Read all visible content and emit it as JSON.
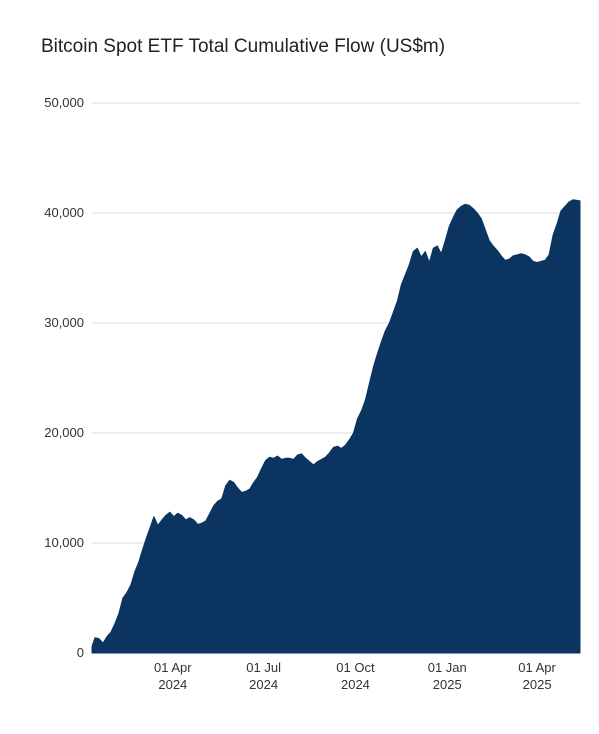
{
  "chart_data": {
    "type": "area",
    "title": "Bitcoin Spot ETF Total Cumulative Flow (US$m)",
    "xlabel": "",
    "ylabel": "",
    "ylim": [
      0,
      50000
    ],
    "xlim": [
      "2024-01-11",
      "2025-05-14"
    ],
    "grid": true,
    "legend": "none",
    "colors": {
      "area": "#0b3560",
      "grid": "#d9d9d9",
      "text": "#333333"
    },
    "y_ticks": [
      {
        "value": 0,
        "label": "0"
      },
      {
        "value": 10000,
        "label": "10,000"
      },
      {
        "value": 20000,
        "label": "20,000"
      },
      {
        "value": 30000,
        "label": "30,000"
      },
      {
        "value": 40000,
        "label": "40,000"
      },
      {
        "value": 50000,
        "label": "50,000"
      }
    ],
    "x_ticks": [
      {
        "date": "2024-04-01",
        "line1": "01 Apr",
        "line2": "2024"
      },
      {
        "date": "2024-07-01",
        "line1": "01 Jul",
        "line2": "2024"
      },
      {
        "date": "2024-10-01",
        "line1": "01 Oct",
        "line2": "2024"
      },
      {
        "date": "2025-01-01",
        "line1": "01 Jan",
        "line2": "2025"
      },
      {
        "date": "2025-04-01",
        "line1": "01 Apr",
        "line2": "2025"
      }
    ],
    "series": [
      {
        "points": [
          [
            "2024-01-11",
            600
          ],
          [
            "2024-01-14",
            1400
          ],
          [
            "2024-01-18",
            1300
          ],
          [
            "2024-01-22",
            900
          ],
          [
            "2024-01-26",
            1500
          ],
          [
            "2024-01-30",
            1900
          ],
          [
            "2024-02-03",
            2700
          ],
          [
            "2024-02-07",
            3600
          ],
          [
            "2024-02-11",
            5000
          ],
          [
            "2024-02-15",
            5500
          ],
          [
            "2024-02-19",
            6200
          ],
          [
            "2024-02-23",
            7400
          ],
          [
            "2024-02-27",
            8300
          ],
          [
            "2024-03-02",
            9500
          ],
          [
            "2024-03-06",
            10600
          ],
          [
            "2024-03-10",
            11600
          ],
          [
            "2024-03-13",
            12400
          ],
          [
            "2024-03-17",
            11600
          ],
          [
            "2024-03-21",
            12100
          ],
          [
            "2024-03-25",
            12500
          ],
          [
            "2024-03-29",
            12800
          ],
          [
            "2024-04-02",
            12400
          ],
          [
            "2024-04-06",
            12700
          ],
          [
            "2024-04-10",
            12500
          ],
          [
            "2024-04-14",
            12100
          ],
          [
            "2024-04-18",
            12300
          ],
          [
            "2024-04-22",
            12100
          ],
          [
            "2024-04-26",
            11700
          ],
          [
            "2024-04-30",
            11800
          ],
          [
            "2024-05-04",
            12000
          ],
          [
            "2024-05-08",
            12700
          ],
          [
            "2024-05-12",
            13400
          ],
          [
            "2024-05-16",
            13800
          ],
          [
            "2024-05-20",
            14000
          ],
          [
            "2024-05-24",
            15200
          ],
          [
            "2024-05-28",
            15700
          ],
          [
            "2024-06-01",
            15500
          ],
          [
            "2024-06-05",
            15000
          ],
          [
            "2024-06-09",
            14600
          ],
          [
            "2024-06-13",
            14700
          ],
          [
            "2024-06-17",
            14900
          ],
          [
            "2024-06-21",
            15500
          ],
          [
            "2024-06-25",
            16000
          ],
          [
            "2024-06-29",
            16800
          ],
          [
            "2024-07-03",
            17500
          ],
          [
            "2024-07-07",
            17800
          ],
          [
            "2024-07-11",
            17700
          ],
          [
            "2024-07-15",
            17900
          ],
          [
            "2024-07-19",
            17600
          ],
          [
            "2024-07-23",
            17700
          ],
          [
            "2024-07-27",
            17700
          ],
          [
            "2024-07-31",
            17600
          ],
          [
            "2024-08-04",
            18000
          ],
          [
            "2024-08-08",
            18100
          ],
          [
            "2024-08-12",
            17700
          ],
          [
            "2024-08-16",
            17400
          ],
          [
            "2024-08-20",
            17100
          ],
          [
            "2024-08-24",
            17400
          ],
          [
            "2024-08-28",
            17600
          ],
          [
            "2024-09-01",
            17800
          ],
          [
            "2024-09-05",
            18200
          ],
          [
            "2024-09-09",
            18700
          ],
          [
            "2024-09-13",
            18800
          ],
          [
            "2024-09-17",
            18600
          ],
          [
            "2024-09-21",
            18900
          ],
          [
            "2024-09-25",
            19400
          ],
          [
            "2024-09-29",
            20000
          ],
          [
            "2024-10-03",
            21300
          ],
          [
            "2024-10-07",
            22000
          ],
          [
            "2024-10-11",
            23000
          ],
          [
            "2024-10-15",
            24500
          ],
          [
            "2024-10-19",
            26000
          ],
          [
            "2024-10-23",
            27200
          ],
          [
            "2024-10-27",
            28300
          ],
          [
            "2024-10-31",
            29300
          ],
          [
            "2024-11-04",
            30000
          ],
          [
            "2024-11-08",
            31000
          ],
          [
            "2024-11-12",
            32000
          ],
          [
            "2024-11-16",
            33500
          ],
          [
            "2024-11-20",
            34400
          ],
          [
            "2024-11-24",
            35300
          ],
          [
            "2024-11-28",
            36500
          ],
          [
            "2024-12-02",
            36800
          ],
          [
            "2024-12-06",
            36000
          ],
          [
            "2024-12-10",
            36500
          ],
          [
            "2024-12-14",
            35500
          ],
          [
            "2024-12-18",
            36800
          ],
          [
            "2024-12-22",
            37000
          ],
          [
            "2024-12-26",
            36300
          ],
          [
            "2024-12-30",
            37500
          ],
          [
            "2025-01-03",
            38800
          ],
          [
            "2025-01-07",
            39600
          ],
          [
            "2025-01-11",
            40300
          ],
          [
            "2025-01-15",
            40600
          ],
          [
            "2025-01-19",
            40800
          ],
          [
            "2025-01-23",
            40700
          ],
          [
            "2025-01-27",
            40400
          ],
          [
            "2025-01-31",
            40000
          ],
          [
            "2025-02-04",
            39500
          ],
          [
            "2025-02-08",
            38500
          ],
          [
            "2025-02-12",
            37500
          ],
          [
            "2025-02-16",
            37000
          ],
          [
            "2025-02-20",
            36600
          ],
          [
            "2025-02-24",
            36100
          ],
          [
            "2025-02-28",
            35700
          ],
          [
            "2025-03-04",
            35800
          ],
          [
            "2025-03-08",
            36100
          ],
          [
            "2025-03-12",
            36200
          ],
          [
            "2025-03-16",
            36300
          ],
          [
            "2025-03-20",
            36200
          ],
          [
            "2025-03-24",
            36000
          ],
          [
            "2025-03-28",
            35600
          ],
          [
            "2025-04-01",
            35500
          ],
          [
            "2025-04-05",
            35600
          ],
          [
            "2025-04-09",
            35700
          ],
          [
            "2025-04-13",
            36200
          ],
          [
            "2025-04-17",
            38000
          ],
          [
            "2025-04-21",
            39000
          ],
          [
            "2025-04-25",
            40200
          ],
          [
            "2025-04-29",
            40600
          ],
          [
            "2025-05-03",
            41000
          ],
          [
            "2025-05-07",
            41200
          ],
          [
            "2025-05-14",
            41100
          ]
        ]
      }
    ]
  }
}
